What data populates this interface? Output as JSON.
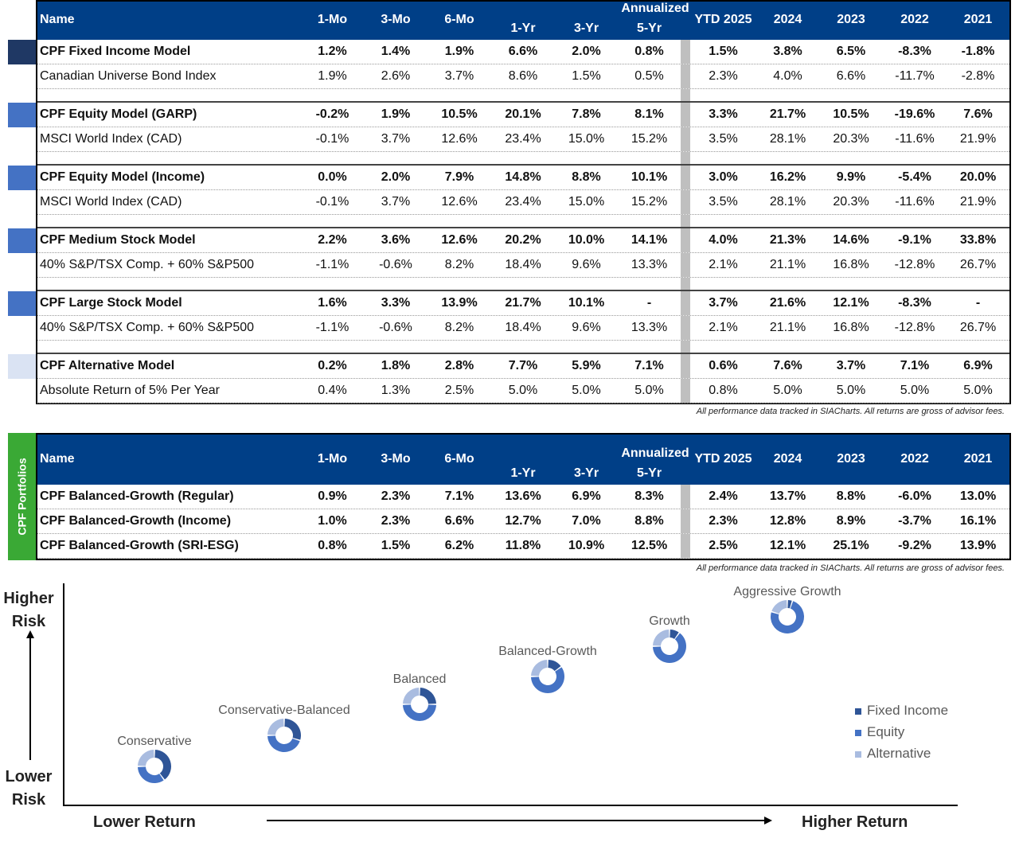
{
  "columns": {
    "name": "Name",
    "annualized": "Annualized",
    "m1": "1-Mo",
    "m3": "3-Mo",
    "m6": "6-Mo",
    "y1": "1-Yr",
    "y3": "3-Yr",
    "y5": "5-Yr",
    "ytd": "YTD 2025",
    "c2024": "2024",
    "c2023": "2023",
    "c2022": "2022",
    "c2021": "2021"
  },
  "models": [
    {
      "swatch": "#1f3864",
      "rows": [
        {
          "name": "CPF Fixed Income Model",
          "bold": true,
          "v": [
            "1.2%",
            "1.4%",
            "1.9%",
            "6.6%",
            "2.0%",
            "0.8%",
            "1.5%",
            "3.8%",
            "6.5%",
            "-8.3%",
            "-1.8%"
          ]
        },
        {
          "name": "Canadian Universe Bond Index",
          "v": [
            "1.9%",
            "2.6%",
            "3.7%",
            "8.6%",
            "1.5%",
            "0.5%",
            "2.3%",
            "4.0%",
            "6.6%",
            "-11.7%",
            "-2.8%"
          ]
        }
      ]
    },
    {
      "swatch": "#4472c4",
      "rows": [
        {
          "name": "CPF Equity Model (GARP)",
          "bold": true,
          "v": [
            "-0.2%",
            "1.9%",
            "10.5%",
            "20.1%",
            "7.8%",
            "8.1%",
            "3.3%",
            "21.7%",
            "10.5%",
            "-19.6%",
            "7.6%"
          ]
        },
        {
          "name": "MSCI World Index (CAD)",
          "v": [
            "-0.1%",
            "3.7%",
            "12.6%",
            "23.4%",
            "15.0%",
            "15.2%",
            "3.5%",
            "28.1%",
            "20.3%",
            "-11.6%",
            "21.9%"
          ]
        }
      ]
    },
    {
      "swatch": "#4472c4",
      "rows": [
        {
          "name": "CPF Equity Model (Income)",
          "bold": true,
          "v": [
            "0.0%",
            "2.0%",
            "7.9%",
            "14.8%",
            "8.8%",
            "10.1%",
            "3.0%",
            "16.2%",
            "9.9%",
            "-5.4%",
            "20.0%"
          ]
        },
        {
          "name": "MSCI World Index (CAD)",
          "v": [
            "-0.1%",
            "3.7%",
            "12.6%",
            "23.4%",
            "15.0%",
            "15.2%",
            "3.5%",
            "28.1%",
            "20.3%",
            "-11.6%",
            "21.9%"
          ]
        }
      ]
    },
    {
      "swatch": "#4472c4",
      "rows": [
        {
          "name": "CPF Medium Stock Model",
          "bold": true,
          "v": [
            "2.2%",
            "3.6%",
            "12.6%",
            "20.2%",
            "10.0%",
            "14.1%",
            "4.0%",
            "21.3%",
            "14.6%",
            "-9.1%",
            "33.8%"
          ]
        },
        {
          "name": "40% S&P/TSX Comp. + 60% S&P500",
          "v": [
            "-1.1%",
            "-0.6%",
            "8.2%",
            "18.4%",
            "9.6%",
            "13.3%",
            "2.1%",
            "21.1%",
            "16.8%",
            "-12.8%",
            "26.7%"
          ]
        }
      ]
    },
    {
      "swatch": "#4472c4",
      "rows": [
        {
          "name": "CPF Large Stock Model",
          "bold": true,
          "v": [
            "1.6%",
            "3.3%",
            "13.9%",
            "21.7%",
            "10.1%",
            "-",
            "3.7%",
            "21.6%",
            "12.1%",
            "-8.3%",
            "-"
          ]
        },
        {
          "name": "40% S&P/TSX Comp. + 60% S&P500",
          "v": [
            "-1.1%",
            "-0.6%",
            "8.2%",
            "18.4%",
            "9.6%",
            "13.3%",
            "2.1%",
            "21.1%",
            "16.8%",
            "-12.8%",
            "26.7%"
          ]
        }
      ]
    },
    {
      "swatch": "#dae3f3",
      "rows": [
        {
          "name": "CPF Alternative Model",
          "bold": true,
          "v": [
            "0.2%",
            "1.8%",
            "2.8%",
            "7.7%",
            "5.9%",
            "7.1%",
            "0.6%",
            "7.6%",
            "3.7%",
            "7.1%",
            "6.9%"
          ]
        },
        {
          "name": "Absolute Return of 5% Per Year",
          "v": [
            "0.4%",
            "1.3%",
            "2.5%",
            "5.0%",
            "5.0%",
            "5.0%",
            "0.8%",
            "5.0%",
            "5.0%",
            "5.0%",
            "5.0%"
          ]
        }
      ]
    }
  ],
  "footnote": "All performance data tracked in SIACharts. All returns are gross of advisor fees.",
  "portfolios": {
    "side_label": "CPF Portfolios",
    "side_color": "#3aa935",
    "rows": [
      {
        "name": "CPF Balanced-Growth (Regular)",
        "v": [
          "0.9%",
          "2.3%",
          "7.1%",
          "13.6%",
          "6.9%",
          "8.3%",
          "2.4%",
          "13.7%",
          "8.8%",
          "-6.0%",
          "13.0%"
        ]
      },
      {
        "name": "CPF Balanced-Growth (Income)",
        "v": [
          "1.0%",
          "2.3%",
          "6.6%",
          "12.7%",
          "7.0%",
          "8.8%",
          "2.3%",
          "12.8%",
          "8.9%",
          "-3.7%",
          "16.1%"
        ]
      },
      {
        "name": "CPF Balanced-Growth (SRI-ESG)",
        "v": [
          "0.8%",
          "1.5%",
          "6.2%",
          "11.8%",
          "10.9%",
          "12.5%",
          "2.5%",
          "12.1%",
          "25.1%",
          "-9.2%",
          "13.9%"
        ]
      }
    ]
  },
  "risk_chart": {
    "higher_risk": "Higher Risk",
    "lower_risk": "Lower Risk",
    "lower_return": "Lower Return",
    "higher_return": "Higher Return",
    "legend": [
      {
        "label": "Fixed Income",
        "color": "#2f5597"
      },
      {
        "label": "Equity",
        "color": "#4472c4"
      },
      {
        "label": "Alternative",
        "color": "#a9bce0"
      }
    ],
    "portfolios": [
      {
        "label": "Conservative",
        "mix": [
          40,
          35,
          25
        ]
      },
      {
        "label": "Conservative-Balanced",
        "mix": [
          30,
          45,
          25
        ]
      },
      {
        "label": "Balanced",
        "mix": [
          25,
          50,
          25
        ]
      },
      {
        "label": "Balanced-Growth",
        "mix": [
          15,
          60,
          25
        ]
      },
      {
        "label": "Growth",
        "mix": [
          10,
          65,
          25
        ]
      },
      {
        "label": "Aggressive Growth",
        "mix": [
          5,
          75,
          20
        ]
      }
    ]
  }
}
